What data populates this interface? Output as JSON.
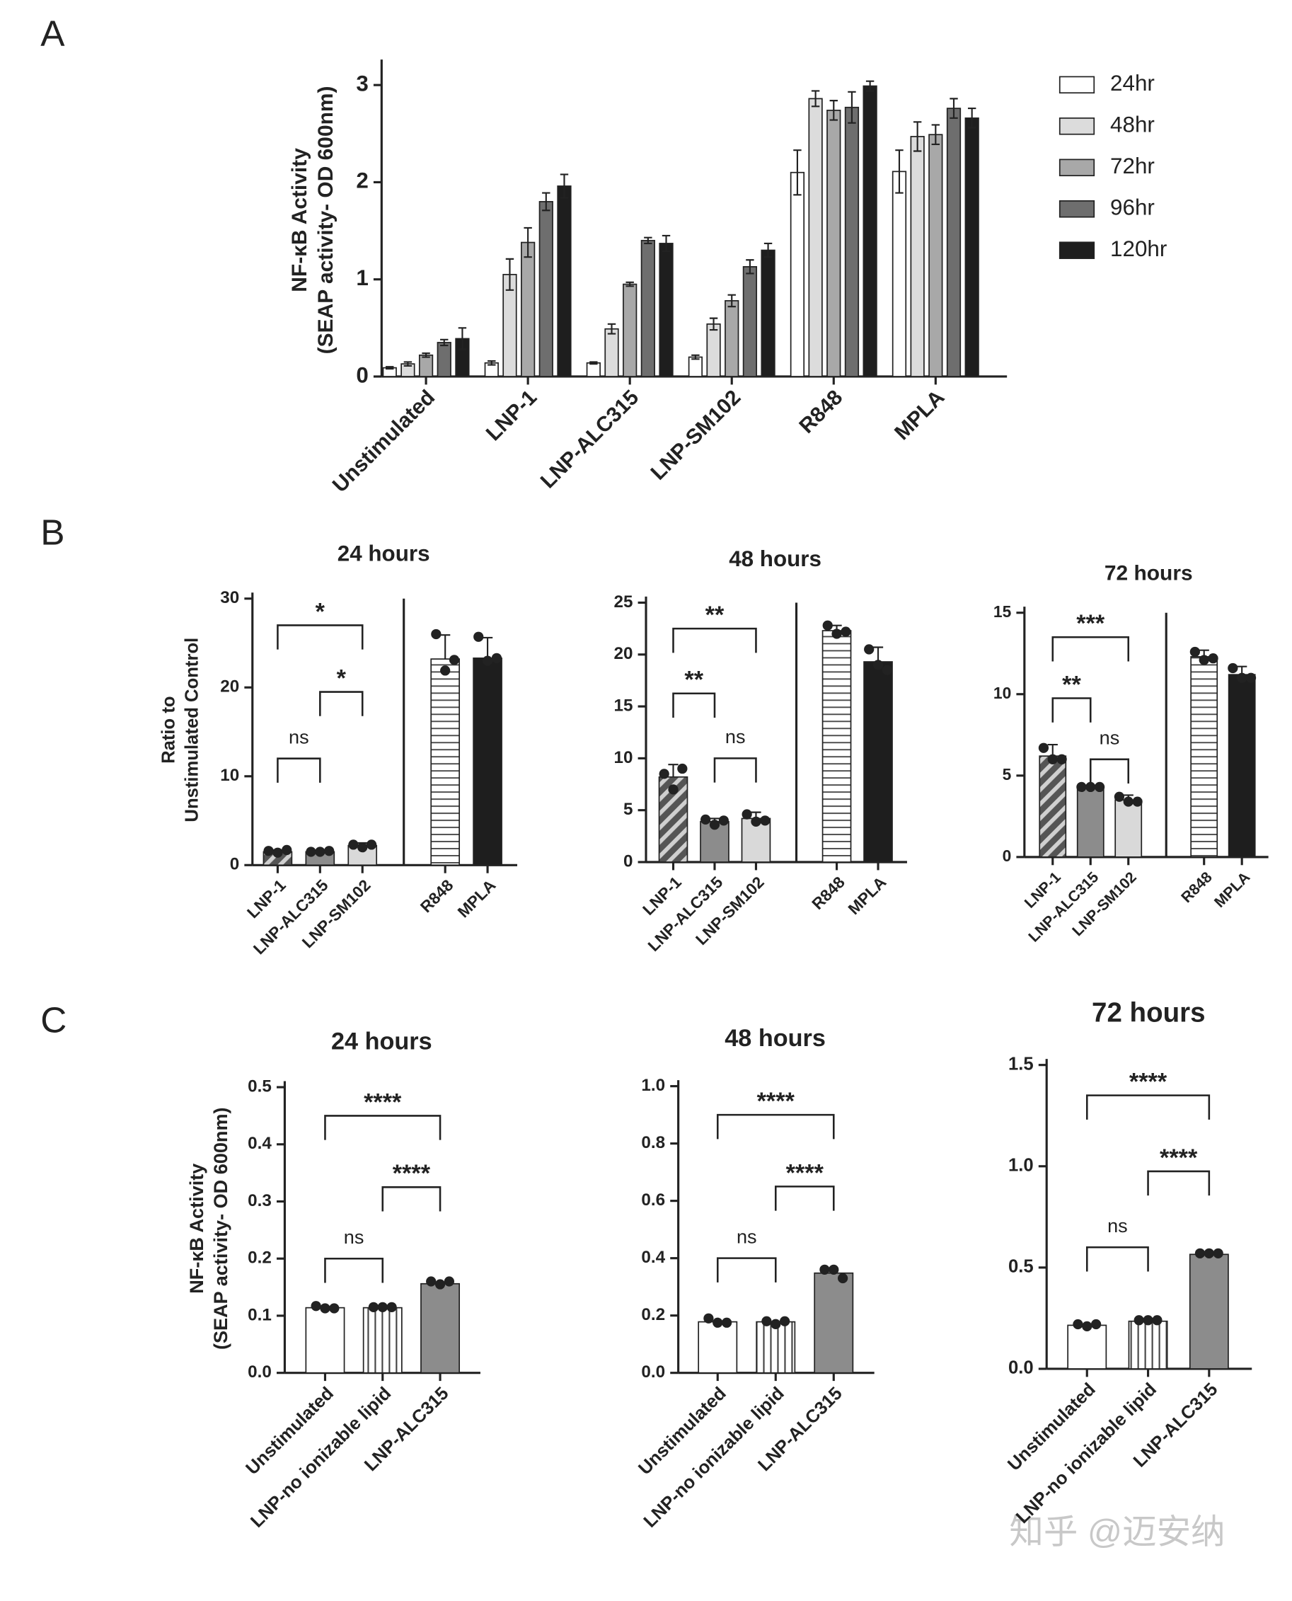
{
  "panels": [
    "A",
    "B",
    "C"
  ],
  "watermark": "知乎 @迈安纳",
  "chart_data": [
    {
      "type": "bar",
      "ylabel": [
        "NF-κB Activity",
        "(SEAP activity- OD 600nm)"
      ],
      "categories": [
        "Unstimulated",
        "LNP-1",
        "LNP-ALC315",
        "LNP-SM102",
        "R848",
        "MPLA"
      ],
      "series": [
        {
          "name": "24hr",
          "color": "#ffffff",
          "values": [
            0.09,
            0.14,
            0.14,
            0.2,
            2.1,
            2.11
          ],
          "errors": [
            0.01,
            0.02,
            0.01,
            0.02,
            0.23,
            0.22
          ]
        },
        {
          "name": "48hr",
          "color": "#dcdcdc",
          "values": [
            0.13,
            1.05,
            0.49,
            0.54,
            2.86,
            2.47
          ],
          "errors": [
            0.02,
            0.16,
            0.05,
            0.06,
            0.08,
            0.15
          ]
        },
        {
          "name": "72hr",
          "color": "#a8a8a8",
          "values": [
            0.22,
            1.38,
            0.95,
            0.78,
            2.74,
            2.49
          ],
          "errors": [
            0.02,
            0.15,
            0.02,
            0.06,
            0.1,
            0.1
          ]
        },
        {
          "name": "96hr",
          "color": "#6e6e6e",
          "values": [
            0.35,
            1.8,
            1.4,
            1.13,
            2.77,
            2.76
          ],
          "errors": [
            0.03,
            0.09,
            0.03,
            0.07,
            0.16,
            0.1
          ]
        },
        {
          "name": "120hr",
          "color": "#1e1e1e",
          "values": [
            0.39,
            1.96,
            1.37,
            1.3,
            2.99,
            2.66
          ],
          "errors": [
            0.11,
            0.12,
            0.08,
            0.07,
            0.05,
            0.1
          ]
        }
      ],
      "ylim": [
        0,
        3.2
      ],
      "yticks": [
        0,
        1,
        2,
        3
      ],
      "legend": "upper right"
    },
    {
      "type": "bar",
      "title": "24 hours",
      "ylabel": [
        "Ratio to",
        "Unstimulated  Control"
      ],
      "categories": [
        "LNP-1",
        "LNP-ALC315",
        "LNP-SM102",
        "R848",
        "MPLA"
      ],
      "values": [
        1.5,
        1.5,
        2.2,
        23.2,
        23.3
      ],
      "errors": [
        0.2,
        0.1,
        0.3,
        2.7,
        2.3
      ],
      "points": [
        [
          1.6,
          1.4,
          1.7
        ],
        [
          1.5,
          1.5,
          1.6
        ],
        [
          2.3,
          2.0,
          2.3
        ],
        [
          26.0,
          21.9,
          23.1
        ],
        [
          25.7,
          23.0,
          23.3
        ]
      ],
      "colors": [
        "#555555",
        "#8c8c8c",
        "#d9d9d9",
        "#ffffff",
        "#1e1e1e"
      ],
      "hatches": [
        "diagonal",
        "none",
        "none",
        "horizontal",
        "none"
      ],
      "split_after": "LNP-SM102",
      "brackets": [
        {
          "from": "LNP-1",
          "to": "LNP-ALC315",
          "label": "ns"
        },
        {
          "from": "LNP-ALC315",
          "to": "LNP-SM102",
          "label": "*"
        },
        {
          "from": "LNP-1",
          "to": "LNP-SM102",
          "label": "*"
        }
      ],
      "ylim": [
        0,
        30
      ],
      "yticks": [
        0,
        10,
        20,
        30
      ]
    },
    {
      "type": "bar",
      "title": "48 hours",
      "categories": [
        "LNP-1",
        "LNP-ALC315",
        "LNP-SM102",
        "R848",
        "MPLA"
      ],
      "values": [
        8.2,
        3.9,
        4.2,
        22.3,
        19.3
      ],
      "errors": [
        1.2,
        0.3,
        0.6,
        0.5,
        1.4
      ],
      "points": [
        [
          8.5,
          7.0,
          9.0
        ],
        [
          4.1,
          3.6,
          4.0
        ],
        [
          4.6,
          3.9,
          4.0
        ],
        [
          22.8,
          22.0,
          22.2
        ],
        [
          20.5,
          19.0,
          18.5
        ]
      ],
      "colors": [
        "#555555",
        "#8c8c8c",
        "#d9d9d9",
        "#ffffff",
        "#1e1e1e"
      ],
      "hatches": [
        "diagonal",
        "none",
        "none",
        "horizontal",
        "none"
      ],
      "split_after": "LNP-SM102",
      "brackets": [
        {
          "from": "LNP-ALC315",
          "to": "LNP-SM102",
          "label": "ns"
        },
        {
          "from": "LNP-1",
          "to": "LNP-ALC315",
          "label": "**"
        },
        {
          "from": "LNP-1",
          "to": "LNP-SM102",
          "label": "**"
        }
      ],
      "ylim": [
        0,
        25
      ],
      "yticks": [
        0,
        5,
        10,
        15,
        20,
        25
      ]
    },
    {
      "type": "bar",
      "title": "72 hours",
      "categories": [
        "LNP-1",
        "LNP-ALC315",
        "LNP-SM102",
        "R848",
        "MPLA"
      ],
      "values": [
        6.2,
        4.3,
        3.5,
        12.3,
        11.2
      ],
      "errors": [
        0.7,
        0.1,
        0.3,
        0.4,
        0.5
      ],
      "points": [
        [
          6.7,
          6.0,
          6.0
        ],
        [
          4.3,
          4.3,
          4.3
        ],
        [
          3.7,
          3.4,
          3.4
        ],
        [
          12.6,
          12.1,
          12.2
        ],
        [
          11.6,
          11.0,
          11.0
        ]
      ],
      "colors": [
        "#555555",
        "#8c8c8c",
        "#d9d9d9",
        "#ffffff",
        "#1e1e1e"
      ],
      "hatches": [
        "diagonal",
        "none",
        "none",
        "horizontal",
        "none"
      ],
      "split_after": "LNP-SM102",
      "brackets": [
        {
          "from": "LNP-ALC315",
          "to": "LNP-SM102",
          "label": "ns"
        },
        {
          "from": "LNP-1",
          "to": "LNP-ALC315",
          "label": "**"
        },
        {
          "from": "LNP-1",
          "to": "LNP-SM102",
          "label": "***"
        }
      ],
      "ylim": [
        0,
        15
      ],
      "yticks": [
        0,
        5,
        10,
        15
      ]
    },
    {
      "type": "bar",
      "title": "24 hours",
      "ylabel": [
        "NF-κB Activity",
        "(SEAP activity- OD 600nm)"
      ],
      "categories": [
        "Unstimulated",
        "LNP-no ionizable lipid",
        "LNP-ALC315"
      ],
      "values": [
        0.114,
        0.114,
        0.156
      ],
      "points": [
        [
          0.117,
          0.113,
          0.113
        ],
        [
          0.115,
          0.115,
          0.115
        ],
        [
          0.16,
          0.155,
          0.16
        ]
      ],
      "colors": [
        "#ffffff",
        "#ffffff",
        "#8c8c8c"
      ],
      "hatches": [
        "none",
        "vertical",
        "none"
      ],
      "brackets": [
        {
          "from": "Unstimulated",
          "to": "LNP-no ionizable lipid",
          "label": "ns"
        },
        {
          "from": "LNP-no ionizable lipid",
          "to": "LNP-ALC315",
          "label": "****"
        },
        {
          "from": "Unstimulated",
          "to": "LNP-ALC315",
          "label": "****"
        }
      ],
      "ylim": [
        0,
        0.5
      ],
      "yticks": [
        {
          "value": 0,
          "label": "0.0"
        },
        0.1,
        0.2,
        0.3,
        0.4,
        0.5
      ]
    },
    {
      "type": "bar",
      "title": "48 hours",
      "categories": [
        "Unstimulated",
        "LNP-no ionizable lipid",
        "LNP-ALC315"
      ],
      "values": [
        0.178,
        0.178,
        0.348
      ],
      "points": [
        [
          0.19,
          0.175,
          0.175
        ],
        [
          0.18,
          0.17,
          0.18
        ],
        [
          0.36,
          0.36,
          0.33
        ]
      ],
      "colors": [
        "#ffffff",
        "#ffffff",
        "#8c8c8c"
      ],
      "hatches": [
        "none",
        "vertical",
        "none"
      ],
      "brackets": [
        {
          "from": "Unstimulated",
          "to": "LNP-no ionizable lipid",
          "label": "ns"
        },
        {
          "from": "LNP-no ionizable lipid",
          "to": "LNP-ALC315",
          "label": "****"
        },
        {
          "from": "Unstimulated",
          "to": "LNP-ALC315",
          "label": "****"
        }
      ],
      "ylim": [
        0,
        1
      ],
      "yticks": [
        {
          "value": 0,
          "label": "0.0"
        },
        0.2,
        0.4,
        0.6,
        0.8,
        {
          "value": 1,
          "label": "1.0"
        }
      ]
    },
    {
      "type": "bar",
      "title": "72 hours",
      "categories": [
        "Unstimulated",
        "LNP-no ionizable lipid",
        "LNP-ALC315"
      ],
      "values": [
        0.215,
        0.235,
        0.565
      ],
      "points": [
        [
          0.22,
          0.21,
          0.22
        ],
        [
          0.24,
          0.24,
          0.24
        ],
        [
          0.57,
          0.57,
          0.57
        ]
      ],
      "colors": [
        "#ffffff",
        "#ffffff",
        "#8c8c8c"
      ],
      "hatches": [
        "none",
        "vertical",
        "none"
      ],
      "brackets": [
        {
          "from": "Unstimulated",
          "to": "LNP-no ionizable lipid",
          "label": "ns"
        },
        {
          "from": "LNP-no ionizable lipid",
          "to": "LNP-ALC315",
          "label": "****"
        },
        {
          "from": "Unstimulated",
          "to": "LNP-ALC315",
          "label": "****"
        }
      ],
      "ylim": [
        0,
        1.5
      ],
      "yticks": [
        {
          "value": 0,
          "label": "0.0"
        },
        0.5,
        {
          "value": 1,
          "label": "1.0"
        },
        1.5
      ]
    }
  ]
}
